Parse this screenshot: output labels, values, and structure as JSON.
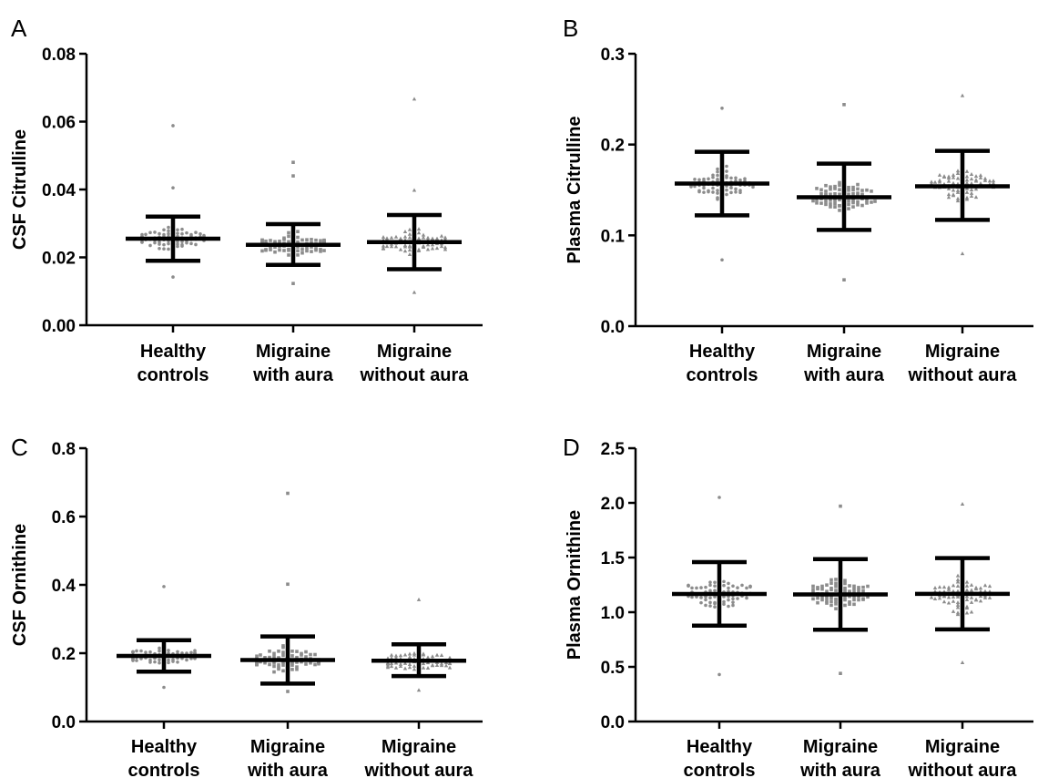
{
  "colors": {
    "axis": "#000000",
    "points": "#8c8c8c",
    "summary": "#000000"
  },
  "chart_data": [
    {
      "panel": "A",
      "type": "scatter",
      "subtype": "dot-plot-with-mean-sd",
      "ylabel": "CSF Citrulline",
      "xlabel": "",
      "ylim": [
        0,
        0.08
      ],
      "yticks": [
        "0.00",
        "0.02",
        "0.04",
        "0.06",
        "0.08"
      ],
      "ytick_values": [
        0,
        0.02,
        0.04,
        0.06,
        0.08
      ],
      "categories": [
        [
          "Healthy",
          "controls"
        ],
        [
          "Migraine",
          "with aura"
        ],
        [
          "Migraine",
          "without aura"
        ]
      ],
      "series": [
        {
          "mean": 0.0255,
          "sd_low": 0.019,
          "sd_high": 0.032,
          "marker": "circle",
          "outliers": [
            0.0588,
            0.0405,
            0.0142
          ],
          "n": 80
        },
        {
          "mean": 0.0237,
          "sd_low": 0.0178,
          "sd_high": 0.0298,
          "marker": "square",
          "outliers": [
            0.048,
            0.044,
            0.0123
          ],
          "n": 80
        },
        {
          "mean": 0.0245,
          "sd_low": 0.0165,
          "sd_high": 0.0325,
          "marker": "triangle",
          "outliers": [
            0.0667,
            0.0398,
            0.0097
          ],
          "n": 80
        }
      ]
    },
    {
      "panel": "B",
      "type": "scatter",
      "subtype": "dot-plot-with-mean-sd",
      "ylabel": "Plasma Citrulline",
      "xlabel": "",
      "ylim": [
        0,
        0.3
      ],
      "yticks": [
        "0.0",
        "0.1",
        "0.2",
        "0.3"
      ],
      "ytick_values": [
        0,
        0.1,
        0.2,
        0.3
      ],
      "categories": [
        [
          "Healthy",
          "controls"
        ],
        [
          "Migraine",
          "with aura"
        ],
        [
          "Migraine",
          "without aura"
        ]
      ],
      "series": [
        {
          "mean": 0.157,
          "sd_low": 0.122,
          "sd_high": 0.192,
          "marker": "circle",
          "outliers": [
            0.24,
            0.073
          ],
          "n": 80
        },
        {
          "mean": 0.142,
          "sd_low": 0.106,
          "sd_high": 0.179,
          "marker": "square",
          "outliers": [
            0.244,
            0.051
          ],
          "n": 80
        },
        {
          "mean": 0.154,
          "sd_low": 0.117,
          "sd_high": 0.193,
          "marker": "triangle",
          "outliers": [
            0.254,
            0.08
          ],
          "n": 80
        }
      ]
    },
    {
      "panel": "C",
      "type": "scatter",
      "subtype": "dot-plot-with-mean-sd",
      "ylabel": "CSF Ornithine",
      "xlabel": "",
      "ylim": [
        0,
        0.8
      ],
      "yticks": [
        "0.0",
        "0.2",
        "0.4",
        "0.6",
        "0.8"
      ],
      "ytick_values": [
        0,
        0.2,
        0.4,
        0.6,
        0.8
      ],
      "categories": [
        [
          "Healthy",
          "controls"
        ],
        [
          "Migraine",
          "with aura"
        ],
        [
          "Migraine",
          "without aura"
        ]
      ],
      "series": [
        {
          "mean": 0.192,
          "sd_low": 0.146,
          "sd_high": 0.238,
          "marker": "circle",
          "outliers": [
            0.395,
            0.1
          ],
          "n": 80
        },
        {
          "mean": 0.18,
          "sd_low": 0.111,
          "sd_high": 0.249,
          "marker": "square",
          "outliers": [
            0.668,
            0.402,
            0.088
          ],
          "n": 80
        },
        {
          "mean": 0.178,
          "sd_low": 0.133,
          "sd_high": 0.226,
          "marker": "triangle",
          "outliers": [
            0.357,
            0.092
          ],
          "n": 80
        }
      ]
    },
    {
      "panel": "D",
      "type": "scatter",
      "subtype": "dot-plot-with-mean-sd",
      "ylabel": "Plasma Ornithine",
      "xlabel": "",
      "ylim": [
        0,
        2.5
      ],
      "yticks": [
        "0.0",
        "0.5",
        "1.0",
        "1.5",
        "2.0",
        "2.5"
      ],
      "ytick_values": [
        0,
        0.5,
        1.0,
        1.5,
        2.0,
        2.5
      ],
      "categories": [
        [
          "Healthy",
          "controls"
        ],
        [
          "Migraine",
          "with aura"
        ],
        [
          "Migraine",
          "without aura"
        ]
      ],
      "series": [
        {
          "mean": 1.167,
          "sd_low": 0.877,
          "sd_high": 1.458,
          "marker": "circle",
          "outliers": [
            2.05,
            0.43
          ],
          "n": 80
        },
        {
          "mean": 1.163,
          "sd_low": 0.84,
          "sd_high": 1.485,
          "marker": "square",
          "outliers": [
            1.97,
            0.44
          ],
          "n": 80
        },
        {
          "mean": 1.168,
          "sd_low": 0.843,
          "sd_high": 1.495,
          "marker": "triangle",
          "outliers": [
            1.99,
            0.54
          ],
          "n": 80
        }
      ]
    }
  ]
}
